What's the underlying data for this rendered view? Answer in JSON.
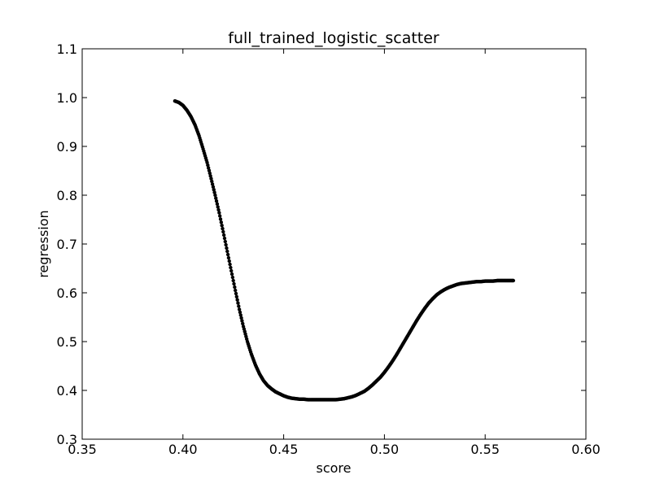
{
  "chart_data": {
    "type": "scatter",
    "title": "full_trained_logistic_scatter",
    "xlabel": "score",
    "ylabel": "regression",
    "xlim": [
      0.35,
      0.6
    ],
    "ylim": [
      0.3,
      1.1
    ],
    "xticks": [
      0.35,
      0.4,
      0.45,
      0.5,
      0.55,
      0.6
    ],
    "yticks": [
      0.3,
      0.4,
      0.5,
      0.6,
      0.7,
      0.8,
      0.9,
      1.0,
      1.1
    ],
    "xtick_labels": [
      "0.35",
      "0.40",
      "0.45",
      "0.50",
      "0.55",
      "0.60"
    ],
    "ytick_labels": [
      "0.3",
      "0.4",
      "0.5",
      "0.6",
      "0.7",
      "0.8",
      "0.9",
      "1.0",
      "1.1"
    ],
    "grid": false,
    "marker_color": "#000000",
    "series": [
      {
        "x": [
          0.396,
          0.398,
          0.4,
          0.402,
          0.404,
          0.406,
          0.408,
          0.41,
          0.412,
          0.414,
          0.416,
          0.418,
          0.42,
          0.422,
          0.424,
          0.426,
          0.428,
          0.43,
          0.432,
          0.434,
          0.436,
          0.438,
          0.44,
          0.442,
          0.444,
          0.446,
          0.448,
          0.45,
          0.452,
          0.454,
          0.456,
          0.458,
          0.46,
          0.462,
          0.464,
          0.466,
          0.468,
          0.47,
          0.472,
          0.474,
          0.476,
          0.478,
          0.48,
          0.482,
          0.484,
          0.486,
          0.488,
          0.49,
          0.492,
          0.494,
          0.496,
          0.498,
          0.5,
          0.502,
          0.504,
          0.506,
          0.508,
          0.51,
          0.512,
          0.514,
          0.516,
          0.518,
          0.52,
          0.522,
          0.524,
          0.526,
          0.528,
          0.53,
          0.532,
          0.534,
          0.536,
          0.538,
          0.54,
          0.542,
          0.544,
          0.546,
          0.548,
          0.55,
          0.552,
          0.554,
          0.556,
          0.558,
          0.56,
          0.562,
          0.564
        ],
        "y": [
          0.993,
          0.99,
          0.984,
          0.974,
          0.961,
          0.944,
          0.922,
          0.895,
          0.867,
          0.834,
          0.8,
          0.764,
          0.725,
          0.685,
          0.645,
          0.605,
          0.566,
          0.531,
          0.5,
          0.474,
          0.452,
          0.434,
          0.42,
          0.41,
          0.403,
          0.397,
          0.393,
          0.389,
          0.386,
          0.384,
          0.383,
          0.382,
          0.382,
          0.381,
          0.381,
          0.381,
          0.381,
          0.381,
          0.381,
          0.381,
          0.381,
          0.382,
          0.383,
          0.385,
          0.387,
          0.39,
          0.394,
          0.398,
          0.404,
          0.411,
          0.419,
          0.427,
          0.437,
          0.448,
          0.46,
          0.473,
          0.487,
          0.501,
          0.515,
          0.529,
          0.543,
          0.556,
          0.568,
          0.579,
          0.588,
          0.596,
          0.602,
          0.607,
          0.611,
          0.614,
          0.617,
          0.619,
          0.62,
          0.621,
          0.622,
          0.623,
          0.623,
          0.624,
          0.624,
          0.624,
          0.625,
          0.625,
          0.625,
          0.625,
          0.625
        ]
      }
    ]
  }
}
